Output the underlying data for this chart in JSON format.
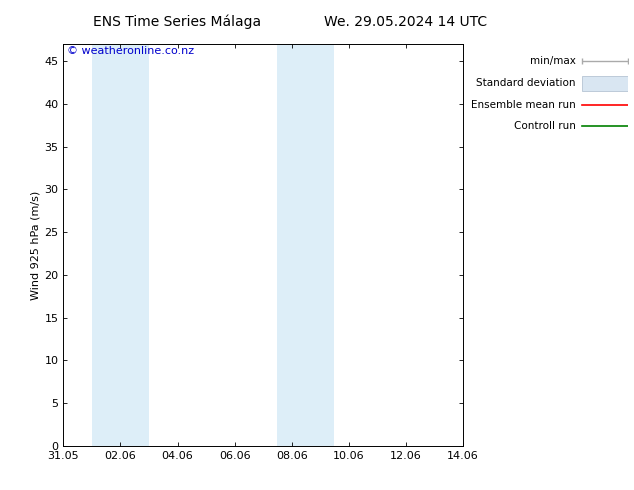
{
  "title_left": "ENS Time Series Málaga",
  "title_right": "We. 29.05.2024 14 UTC",
  "ylabel": "Wind 925 hPa (m/s)",
  "watermark": "© weatheronline.co.nz",
  "ylim": [
    0,
    47
  ],
  "yticks": [
    0,
    5,
    10,
    15,
    20,
    25,
    30,
    35,
    40,
    45
  ],
  "x_start_days": 0,
  "x_end_days": 14,
  "xtick_labels": [
    "31.05",
    "02.06",
    "04.06",
    "06.06",
    "08.06",
    "10.06",
    "12.06",
    "14.06"
  ],
  "xtick_positions_days": [
    0,
    2,
    4,
    6,
    8,
    10,
    12,
    14
  ],
  "shaded_bands": [
    {
      "x_start_days": 1.0,
      "x_end_days": 3.0,
      "color": "#ddeef8"
    },
    {
      "x_start_days": 7.5,
      "x_end_days": 9.5,
      "color": "#ddeef8"
    }
  ],
  "legend_labels": [
    "min/max",
    "Standard deviation",
    "Ensemble mean run",
    "Controll run"
  ],
  "legend_colors_line": [
    "#aaaaaa",
    "#ccddee",
    "#ff0000",
    "#008000"
  ],
  "bg_color": "#ffffff",
  "spine_color": "#000000",
  "watermark_color": "#0000cc",
  "watermark_fontsize": 8,
  "title_fontsize": 10,
  "axis_fontsize": 8,
  "ylabel_fontsize": 8
}
